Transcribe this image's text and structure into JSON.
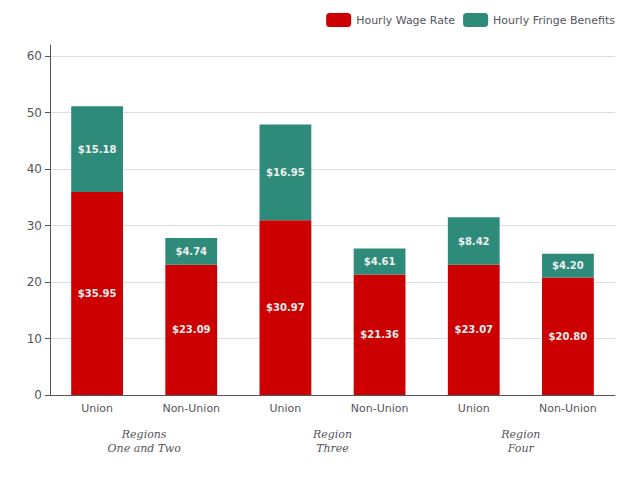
{
  "chart_data": {
    "type": "bar",
    "categories": [
      "Union",
      "Non-Union",
      "Union",
      "Non-Union",
      "Union",
      "Non-Union"
    ],
    "groups": [
      "Regions\nOne and Two",
      "Region\nThree",
      "Region\nFour"
    ],
    "series": [
      {
        "name": "Hourly Wage Rate",
        "color": "#CC0000",
        "values": [
          35.95,
          23.09,
          30.97,
          21.36,
          23.07,
          20.8
        ],
        "value_labels": [
          "$35.95",
          "$23.09",
          "$30.97",
          "$21.36",
          "$23.07",
          "$20.80"
        ]
      },
      {
        "name": "Hourly Fringe Benefits",
        "color": "#2E8B7A",
        "values": [
          15.18,
          4.74,
          16.95,
          4.61,
          8.42,
          4.2
        ],
        "value_labels": [
          "$15.18",
          "$4.74",
          "$16.95",
          "$4.61",
          "$8.42",
          "$4.20"
        ]
      }
    ],
    "stacked": true,
    "data_labels": true,
    "ylim": [
      0,
      62
    ],
    "yticks": [
      0,
      10,
      20,
      30,
      40,
      50,
      60
    ],
    "grid": true,
    "legend": "upper right"
  }
}
